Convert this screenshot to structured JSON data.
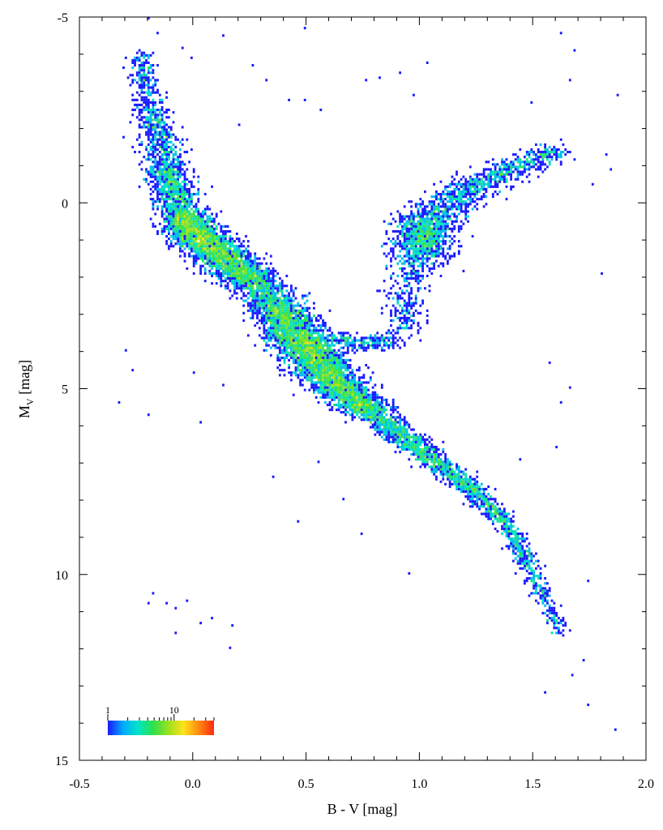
{
  "chart_data": {
    "type": "heatmap",
    "title": "",
    "xlabel": "B - V [mag]",
    "ylabel_main": "M",
    "ylabel_sub": "V",
    "ylabel_unit": " [mag]",
    "xlim": [
      -0.5,
      2.0
    ],
    "ylim": [
      -5,
      15
    ],
    "y_inverted": true,
    "x_ticks": [
      -0.5,
      0.0,
      0.5,
      1.0,
      1.5,
      2.0
    ],
    "x_tick_labels": [
      "-0.5",
      "0.0",
      "0.5",
      "1.0",
      "1.5",
      "2.0"
    ],
    "y_ticks": [
      -5,
      0,
      5,
      10,
      15
    ],
    "y_tick_labels": [
      "-5",
      "0",
      "5",
      "10",
      "15"
    ],
    "grid": false,
    "colorbar": {
      "scale": "log",
      "min": 1,
      "max": 40,
      "labels": [
        "1",
        "10"
      ],
      "placement": "bottom-left",
      "colors": [
        "#1a1aff",
        "#00aaff",
        "#00e5c8",
        "#2ee04a",
        "#9be11f",
        "#ffe21a",
        "#ff8a10",
        "#ff2a10"
      ]
    },
    "density_regions": [
      {
        "name": "upper-main-sequence",
        "path": [
          [
            -0.23,
            -4.0
          ],
          [
            -0.18,
            -2.5
          ],
          [
            -0.12,
            -1.0
          ],
          [
            -0.05,
            0.3
          ],
          [
            0.02,
            0.9
          ],
          [
            0.12,
            1.4
          ],
          [
            0.25,
            2.0
          ],
          [
            0.38,
            2.8
          ]
        ],
        "width": [
          0.05,
          0.07,
          0.09,
          0.1,
          0.12,
          0.12,
          0.12,
          0.12
        ],
        "count": [
          150,
          300,
          600,
          900,
          900,
          900,
          800,
          600
        ]
      },
      {
        "name": "turnoff-main-sequence",
        "path": [
          [
            0.38,
            2.8
          ],
          [
            0.46,
            3.6
          ],
          [
            0.55,
            4.3
          ],
          [
            0.65,
            5.0
          ],
          [
            0.78,
            5.6
          ]
        ],
        "width": [
          0.12,
          0.13,
          0.13,
          0.12,
          0.1
        ],
        "count": [
          900,
          1200,
          1100,
          900,
          700
        ]
      },
      {
        "name": "lower-main-sequence",
        "path": [
          [
            0.78,
            5.6
          ],
          [
            0.95,
            6.4
          ],
          [
            1.1,
            7.1
          ],
          [
            1.25,
            7.8
          ],
          [
            1.38,
            8.6
          ],
          [
            1.47,
            9.6
          ],
          [
            1.55,
            10.6
          ],
          [
            1.62,
            11.6
          ]
        ],
        "width": [
          0.09,
          0.08,
          0.07,
          0.06,
          0.05,
          0.05,
          0.04,
          0.04
        ],
        "count": [
          500,
          450,
          400,
          300,
          250,
          180,
          120,
          60
        ]
      },
      {
        "name": "red-clump",
        "center": [
          1.02,
          0.9
        ],
        "sigma": [
          0.07,
          0.35
        ],
        "count": 700
      },
      {
        "name": "red-giant-branch",
        "path": [
          [
            0.92,
            3.5
          ],
          [
            0.95,
            2.0
          ],
          [
            1.05,
            0.5
          ],
          [
            1.2,
            -0.3
          ],
          [
            1.4,
            -0.9
          ],
          [
            1.6,
            -1.4
          ]
        ],
        "width": [
          0.08,
          0.1,
          0.12,
          0.12,
          0.1,
          0.08
        ],
        "count": [
          150,
          250,
          350,
          350,
          300,
          200
        ]
      },
      {
        "name": "subgiant-branch",
        "path": [
          [
            0.6,
            3.6
          ],
          [
            0.75,
            3.8
          ],
          [
            0.9,
            3.7
          ]
        ],
        "width": [
          0.08,
          0.08,
          0.08
        ],
        "count": [
          120,
          120,
          120
        ]
      }
    ],
    "sparse_points": [
      [
        -0.2,
        -5.0
      ],
      [
        -0.16,
        -4.6
      ],
      [
        0.13,
        -4.5
      ],
      [
        0.32,
        -3.3
      ],
      [
        0.49,
        -4.7
      ],
      [
        -0.05,
        -4.2
      ],
      [
        -0.01,
        -3.9
      ],
      [
        0.26,
        -3.7
      ],
      [
        0.42,
        -2.8
      ],
      [
        0.49,
        -2.8
      ],
      [
        0.76,
        -3.3
      ],
      [
        0.82,
        -3.4
      ],
      [
        0.91,
        -3.5
      ],
      [
        0.97,
        -2.9
      ],
      [
        1.03,
        -3.8
      ],
      [
        1.62,
        -4.6
      ],
      [
        1.68,
        -4.1
      ],
      [
        1.88,
        -2.9
      ],
      [
        1.49,
        -2.7
      ],
      [
        1.66,
        -3.3
      ],
      [
        0.2,
        -2.1
      ],
      [
        0.57,
        -2.5
      ],
      [
        1.82,
        -1.3
      ],
      [
        1.76,
        -0.5
      ],
      [
        1.84,
        -0.9
      ],
      [
        -0.3,
        4.0
      ],
      [
        -0.27,
        4.5
      ],
      [
        -0.33,
        5.4
      ],
      [
        -0.2,
        5.7
      ],
      [
        0.0,
        4.6
      ],
      [
        0.03,
        5.9
      ],
      [
        0.13,
        4.9
      ],
      [
        0.47,
        8.6
      ],
      [
        0.35,
        7.4
      ],
      [
        0.74,
        8.9
      ],
      [
        0.66,
        8.0
      ],
      [
        0.95,
        10.0
      ],
      [
        0.55,
        7.0
      ],
      [
        1.8,
        1.9
      ],
      [
        1.74,
        10.2
      ],
      [
        1.72,
        12.3
      ],
      [
        1.67,
        12.7
      ],
      [
        1.55,
        13.2
      ],
      [
        1.74,
        13.5
      ],
      [
        1.86,
        14.2
      ],
      [
        -0.18,
        10.5
      ],
      [
        -0.2,
        10.8
      ],
      [
        -0.12,
        10.8
      ],
      [
        -0.08,
        10.9
      ],
      [
        -0.03,
        10.7
      ],
      [
        -0.08,
        11.6
      ],
      [
        0.03,
        11.3
      ],
      [
        0.08,
        11.2
      ],
      [
        0.17,
        11.4
      ],
      [
        0.16,
        12.0
      ],
      [
        1.57,
        4.3
      ],
      [
        1.66,
        5.0
      ],
      [
        1.62,
        5.4
      ],
      [
        1.6,
        6.6
      ],
      [
        1.44,
        6.9
      ]
    ]
  }
}
